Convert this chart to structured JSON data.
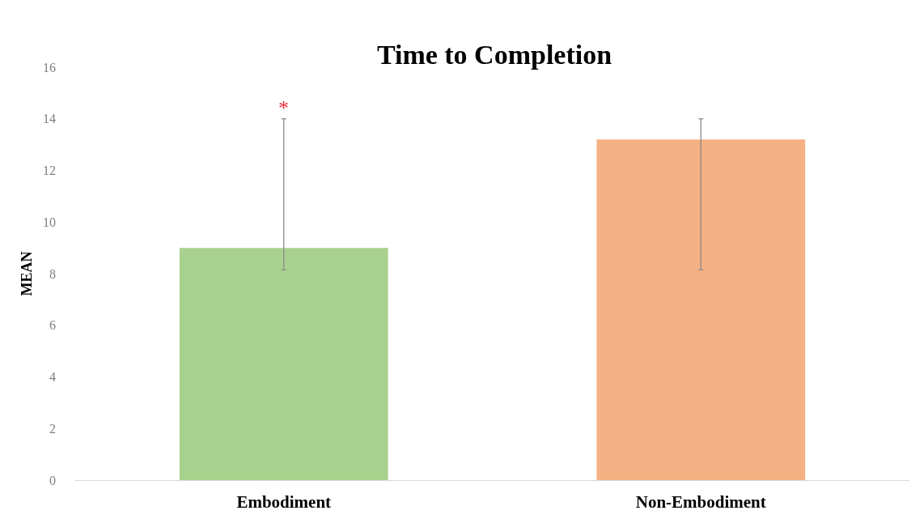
{
  "chart_data": {
    "type": "bar",
    "title": "Time to Completion",
    "ylabel": "MEAN",
    "categories": [
      "Embodiment",
      "Non-Embodiment"
    ],
    "values": [
      9.0,
      13.2
    ],
    "colors": [
      "#a9d18e",
      "#f4b183"
    ],
    "errors": [
      [
        8.15,
        14.0
      ],
      [
        8.15,
        14.0
      ]
    ],
    "ylim": [
      0,
      16
    ],
    "yticks": [
      0,
      2,
      4,
      6,
      8,
      10,
      12,
      14,
      16
    ],
    "grid": false,
    "annotations": [
      "*"
    ]
  }
}
